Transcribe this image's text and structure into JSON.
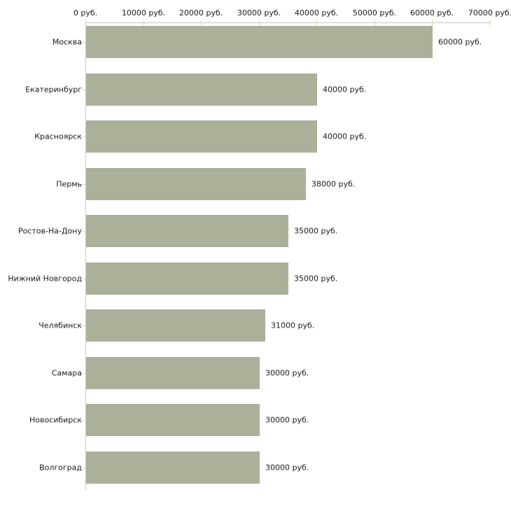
{
  "chart_data": {
    "type": "bar",
    "orientation": "horizontal",
    "title": "",
    "xlabel": "",
    "ylabel": "",
    "unit_suffix": " руб.",
    "categories": [
      "Москва",
      "Екатеринбург",
      "Красноярск",
      "Пермь",
      "Ростов-На-Дону",
      "Нижний Новгород",
      "Челябинск",
      "Самара",
      "Новосибирск",
      "Волгоград"
    ],
    "values": [
      60000,
      40000,
      40000,
      38000,
      35000,
      35000,
      31000,
      30000,
      30000,
      30000
    ],
    "value_labels": [
      "60000 руб.",
      "40000 руб.",
      "40000 руб.",
      "38000 руб.",
      "35000 руб.",
      "35000 руб.",
      "31000 руб.",
      "30000 руб.",
      "30000 руб.",
      "30000 руб."
    ],
    "x_tick_values": [
      0,
      10000,
      20000,
      30000,
      40000,
      50000,
      60000,
      70000
    ],
    "x_tick_labels": [
      "0 руб.",
      "10000 руб.",
      "20000 руб.",
      "30000 руб.",
      "40000 руб.",
      "50000 руб.",
      "60000 руб.",
      "70000 руб."
    ],
    "xlim": [
      0,
      70000
    ],
    "grid": false,
    "legend": false,
    "axis_position": "top",
    "colors": {
      "bar_fill": "#abb199",
      "axis_line": "#c9c9c9",
      "tick_mark": "#d9dbb0",
      "text": "#1a1a1a",
      "background": "#ffffff"
    }
  }
}
